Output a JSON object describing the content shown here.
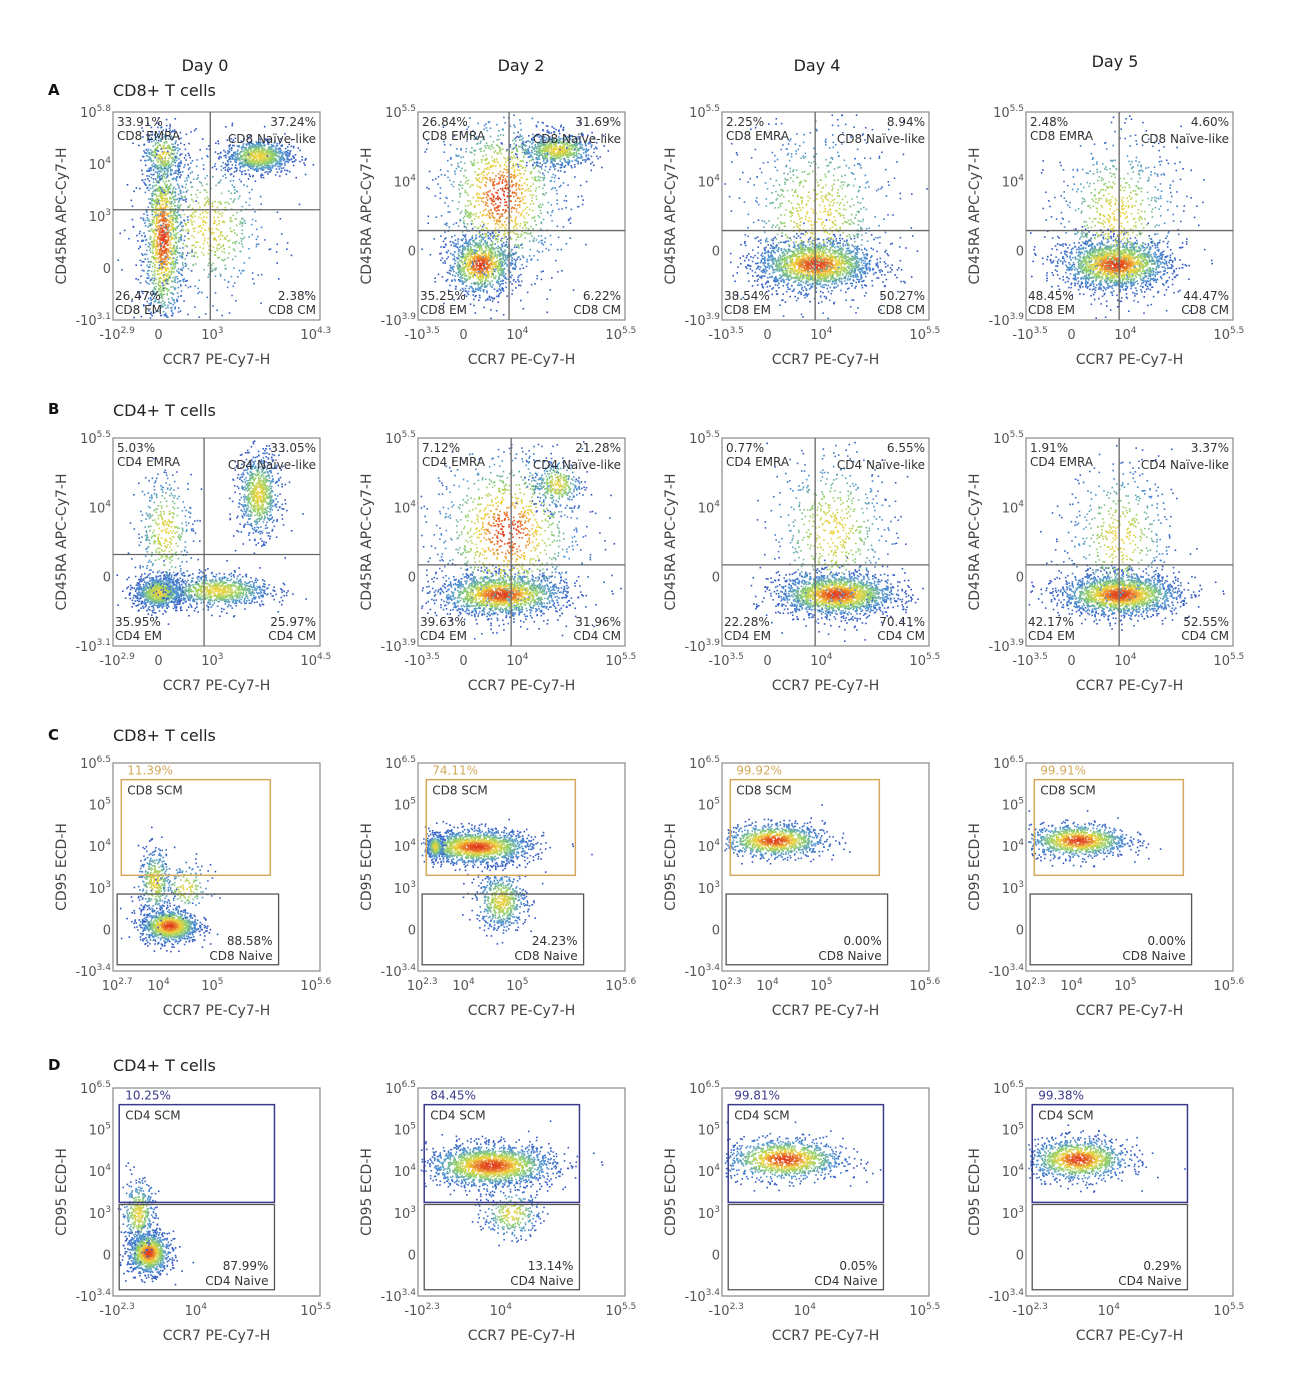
{
  "columns": [
    "Day 0",
    "Day 2",
    "Day 4",
    "Day 5"
  ],
  "rows": [
    {
      "letter": "A",
      "title": "CD8+ T cells"
    },
    {
      "letter": "B",
      "title": "CD4+ T cells"
    },
    {
      "letter": "C",
      "title": "CD8+ T cells"
    },
    {
      "letter": "D",
      "title": "CD4+ T cells"
    }
  ],
  "colors": {
    "gate_scm_cd8": "#d4a85a",
    "gate_scm_cd4": "#3a3a8a",
    "quad_line": "#666666",
    "density_low": "#3050c0",
    "density_mid": "#8fd06a",
    "density_high": "#e03a1c"
  },
  "chart_data": [
    {
      "panel": "A",
      "day": "Day 0",
      "type": "scatter",
      "subtype": "density-quadrant",
      "xlabel": "CCR7 PE-Cy7-H",
      "ylabel": "CD45RA APC-Cy7-H",
      "xticks": [
        "-10^2.9",
        "0",
        "10^3",
        "10^4.3"
      ],
      "yticks": [
        "10^5.8",
        "10^4",
        "10^3",
        "0",
        "-10^3.1"
      ],
      "quadrants": {
        "ul": {
          "pct": "33.91%",
          "name": "CD8 EMRA"
        },
        "ur": {
          "pct": "37.24%",
          "name": "CD8 Naïve-like"
        },
        "ll": {
          "pct": "26.47%",
          "name": "CD8 EM"
        },
        "lr": {
          "pct": "2.38%",
          "name": "CD8 CM"
        }
      },
      "populations": [
        {
          "x": 0.24,
          "y": 0.4,
          "sx": 0.05,
          "sy": 0.22,
          "n": 1400
        },
        {
          "x": 0.7,
          "y": 0.79,
          "sx": 0.08,
          "sy": 0.04,
          "n": 900
        },
        {
          "x": 0.24,
          "y": 0.8,
          "sx": 0.05,
          "sy": 0.06,
          "n": 300
        },
        {
          "x": 0.45,
          "y": 0.45,
          "sx": 0.15,
          "sy": 0.18,
          "n": 600
        }
      ]
    },
    {
      "panel": "A",
      "day": "Day 2",
      "type": "scatter",
      "subtype": "density-quadrant",
      "xlabel": "CCR7 PE-Cy7-H",
      "ylabel": "CD45RA APC-Cy7-H",
      "xticks": [
        "-10^3.5",
        "0",
        "10^4",
        "10^5.5"
      ],
      "yticks": [
        "10^5.5",
        "10^4",
        "0",
        "-10^3.9"
      ],
      "quadrants": {
        "ul": {
          "pct": "26.84%",
          "name": "CD8 EMRA"
        },
        "ur": {
          "pct": "31.69%",
          "name": "CD8 Naïve-like"
        },
        "ll": {
          "pct": "35.25%",
          "name": "CD8 EM"
        },
        "lr": {
          "pct": "6.22%",
          "name": "CD8 CM"
        }
      },
      "populations": [
        {
          "x": 0.3,
          "y": 0.27,
          "sx": 0.08,
          "sy": 0.07,
          "n": 1100
        },
        {
          "x": 0.67,
          "y": 0.82,
          "sx": 0.09,
          "sy": 0.04,
          "n": 700
        },
        {
          "x": 0.4,
          "y": 0.6,
          "sx": 0.15,
          "sy": 0.2,
          "n": 1200
        }
      ]
    },
    {
      "panel": "A",
      "day": "Day 4",
      "type": "scatter",
      "subtype": "density-quadrant",
      "xlabel": "CCR7 PE-Cy7-H",
      "ylabel": "CD45RA APC-Cy7-H",
      "xticks": [
        "-10^3.5",
        "0",
        "10^4",
        "10^5.5"
      ],
      "yticks": [
        "10^5.5",
        "10^4",
        "0",
        "-10^3.9"
      ],
      "quadrants": {
        "ul": {
          "pct": "2.25%",
          "name": "CD8 EMRA"
        },
        "ur": {
          "pct": "8.94%",
          "name": "CD8 Naïve-like"
        },
        "ll": {
          "pct": "38.54%",
          "name": "CD8 EM"
        },
        "lr": {
          "pct": "50.27%",
          "name": "CD8 CM"
        }
      },
      "populations": [
        {
          "x": 0.45,
          "y": 0.27,
          "sx": 0.14,
          "sy": 0.06,
          "n": 1900
        },
        {
          "x": 0.45,
          "y": 0.5,
          "sx": 0.18,
          "sy": 0.22,
          "n": 800
        }
      ]
    },
    {
      "panel": "A",
      "day": "Day 5",
      "type": "scatter",
      "subtype": "density-quadrant",
      "xlabel": "CCR7 PE-Cy7-H",
      "ylabel": "CD45RA APC-Cy7-H",
      "xticks": [
        "-10^3.5",
        "0",
        "10^4",
        "10^5.5"
      ],
      "yticks": [
        "10^5.5",
        "10^4",
        "0",
        "-10^3.9"
      ],
      "quadrants": {
        "ul": {
          "pct": "2.48%",
          "name": "CD8 EMRA"
        },
        "ur": {
          "pct": "4.60%",
          "name": "CD8 Naïve-like"
        },
        "ll": {
          "pct": "48.45%",
          "name": "CD8 EM"
        },
        "lr": {
          "pct": "44.47%",
          "name": "CD8 CM"
        }
      },
      "populations": [
        {
          "x": 0.43,
          "y": 0.27,
          "sx": 0.13,
          "sy": 0.06,
          "n": 1900
        },
        {
          "x": 0.44,
          "y": 0.5,
          "sx": 0.15,
          "sy": 0.2,
          "n": 700
        }
      ]
    },
    {
      "panel": "B",
      "day": "Day 0",
      "type": "scatter",
      "subtype": "density-quadrant",
      "xlabel": "CCR7 PE-Cy7-H",
      "ylabel": "CD45RA APC-Cy7-H",
      "xticks": [
        "-10^2.9",
        "0",
        "10^3",
        "10^4.5"
      ],
      "yticks": [
        "10^5.5",
        "10^4",
        "0",
        "-10^3.1"
      ],
      "quadrants": {
        "ul": {
          "pct": "5.03%",
          "name": "CD4 EMRA"
        },
        "ur": {
          "pct": "33.05%",
          "name": "CD4 Naïve-like"
        },
        "ll": {
          "pct": "35.95%",
          "name": "CD4 EM"
        },
        "lr": {
          "pct": "25.97%",
          "name": "CD4 CM"
        }
      },
      "populations": [
        {
          "x": 0.22,
          "y": 0.26,
          "sx": 0.06,
          "sy": 0.04,
          "n": 900
        },
        {
          "x": 0.5,
          "y": 0.27,
          "sx": 0.13,
          "sy": 0.04,
          "n": 900
        },
        {
          "x": 0.7,
          "y": 0.73,
          "sx": 0.05,
          "sy": 0.1,
          "n": 800
        },
        {
          "x": 0.25,
          "y": 0.55,
          "sx": 0.07,
          "sy": 0.15,
          "n": 400
        }
      ]
    },
    {
      "panel": "B",
      "day": "Day 2",
      "type": "scatter",
      "subtype": "density-quadrant",
      "xlabel": "CCR7 PE-Cy7-H",
      "ylabel": "CD45RA APC-Cy7-H",
      "xticks": [
        "-10^3.5",
        "0",
        "10^4",
        "10^5.5"
      ],
      "yticks": [
        "10^5.5",
        "10^4",
        "0",
        "-10^3.9"
      ],
      "quadrants": {
        "ul": {
          "pct": "7.12%",
          "name": "CD4 EMRA"
        },
        "ur": {
          "pct": "21.28%",
          "name": "CD4 Naïve-like"
        },
        "ll": {
          "pct": "39.63%",
          "name": "CD4 EM"
        },
        "lr": {
          "pct": "31.96%",
          "name": "CD4 CM"
        }
      },
      "populations": [
        {
          "x": 0.4,
          "y": 0.25,
          "sx": 0.15,
          "sy": 0.05,
          "n": 1700
        },
        {
          "x": 0.43,
          "y": 0.55,
          "sx": 0.18,
          "sy": 0.2,
          "n": 1100
        },
        {
          "x": 0.67,
          "y": 0.78,
          "sx": 0.06,
          "sy": 0.06,
          "n": 300
        }
      ]
    },
    {
      "panel": "B",
      "day": "Day 4",
      "type": "scatter",
      "subtype": "density-quadrant",
      "xlabel": "CCR7 PE-Cy7-H",
      "ylabel": "CD45RA APC-Cy7-H",
      "xticks": [
        "-10^3.5",
        "0",
        "10^4",
        "10^5.5"
      ],
      "yticks": [
        "10^5.5",
        "10^4",
        "0",
        "-10^3.9"
      ],
      "quadrants": {
        "ul": {
          "pct": "0.77%",
          "name": "CD4 EMRA"
        },
        "ur": {
          "pct": "6.55%",
          "name": "CD4 Naïve-like"
        },
        "ll": {
          "pct": "22.28%",
          "name": "CD4 EM"
        },
        "lr": {
          "pct": "70.41%",
          "name": "CD4 CM"
        }
      },
      "populations": [
        {
          "x": 0.55,
          "y": 0.25,
          "sx": 0.14,
          "sy": 0.05,
          "n": 1900
        },
        {
          "x": 0.53,
          "y": 0.55,
          "sx": 0.15,
          "sy": 0.2,
          "n": 600
        }
      ]
    },
    {
      "panel": "B",
      "day": "Day 5",
      "type": "scatter",
      "subtype": "density-quadrant",
      "xlabel": "CCR7 PE-Cy7-H",
      "ylabel": "CD45RA APC-Cy7-H",
      "xticks": [
        "-10^3.5",
        "0",
        "10^4",
        "10^5.5"
      ],
      "yticks": [
        "10^5.5",
        "10^4",
        "0",
        "-10^3.9"
      ],
      "quadrants": {
        "ul": {
          "pct": "1.91%",
          "name": "CD4 EMRA"
        },
        "ur": {
          "pct": "3.37%",
          "name": "CD4 Naïve-like"
        },
        "ll": {
          "pct": "42.17%",
          "name": "CD4 EM"
        },
        "lr": {
          "pct": "52.55%",
          "name": "CD4 CM"
        }
      },
      "populations": [
        {
          "x": 0.45,
          "y": 0.25,
          "sx": 0.14,
          "sy": 0.05,
          "n": 1900
        },
        {
          "x": 0.45,
          "y": 0.52,
          "sx": 0.13,
          "sy": 0.18,
          "n": 500
        }
      ]
    },
    {
      "panel": "C",
      "day": "Day 0",
      "type": "scatter",
      "subtype": "density-gate",
      "xlabel": "CCR7 PE-Cy7-H",
      "ylabel": "CD95 ECD-H",
      "xticks": [
        "10^2.7",
        "10^4",
        "10^5",
        "10^5.6"
      ],
      "yticks": [
        "10^6.5",
        "10^5",
        "10^4",
        "10^3",
        "0",
        "-10^3.4"
      ],
      "gates": {
        "upper": {
          "pct": "11.39%",
          "name": "CD8 SCM"
        },
        "lower": {
          "pct": "88.58%",
          "name": "CD8 Naive"
        }
      },
      "populations": [
        {
          "x": 0.27,
          "y": 0.22,
          "sx": 0.07,
          "sy": 0.04,
          "n": 1100
        },
        {
          "x": 0.2,
          "y": 0.43,
          "sx": 0.04,
          "sy": 0.08,
          "n": 400
        },
        {
          "x": 0.35,
          "y": 0.4,
          "sx": 0.06,
          "sy": 0.06,
          "n": 150
        }
      ]
    },
    {
      "panel": "C",
      "day": "Day 2",
      "type": "scatter",
      "subtype": "density-gate",
      "xlabel": "CCR7 PE-Cy7-H",
      "ylabel": "CD95 ECD-H",
      "xticks": [
        "10^2.3",
        "10^4",
        "10^5",
        "10^5.6"
      ],
      "yticks": [
        "10^6.5",
        "10^5",
        "10^4",
        "10^3",
        "0",
        "-10^3.4"
      ],
      "gates": {
        "upper": {
          "pct": "74.11%",
          "name": "CD8 SCM"
        },
        "lower": {
          "pct": "24.23%",
          "name": "CD8 Naive"
        }
      },
      "populations": [
        {
          "x": 0.28,
          "y": 0.6,
          "sx": 0.13,
          "sy": 0.04,
          "n": 1700
        },
        {
          "x": 0.4,
          "y": 0.34,
          "sx": 0.06,
          "sy": 0.07,
          "n": 600
        },
        {
          "x": 0.08,
          "y": 0.6,
          "sx": 0.02,
          "sy": 0.03,
          "n": 250
        }
      ]
    },
    {
      "panel": "C",
      "day": "Day 4",
      "type": "scatter",
      "subtype": "density-gate",
      "xlabel": "CCR7 PE-Cy7-H",
      "ylabel": "CD95 ECD-H",
      "xticks": [
        "10^2.3",
        "10^4",
        "10^5",
        "10^5.6"
      ],
      "yticks": [
        "10^6.5",
        "10^5",
        "10^4",
        "10^3",
        "0",
        "-10^3.4"
      ],
      "gates": {
        "upper": {
          "pct": "99.92%",
          "name": "CD8 SCM"
        },
        "lower": {
          "pct": "0.00%",
          "name": "CD8 Naive"
        }
      },
      "populations": [
        {
          "x": 0.25,
          "y": 0.63,
          "sx": 0.12,
          "sy": 0.04,
          "n": 1100
        }
      ]
    },
    {
      "panel": "C",
      "day": "Day 5",
      "type": "scatter",
      "subtype": "density-gate",
      "xlabel": "CCR7 PE-Cy7-H",
      "ylabel": "CD95 ECD-H",
      "xticks": [
        "10^2.3",
        "10^4",
        "10^5",
        "10^5.6"
      ],
      "yticks": [
        "10^6.5",
        "10^5",
        "10^4",
        "10^3",
        "0",
        "-10^3.4"
      ],
      "gates": {
        "upper": {
          "pct": "99.91%",
          "name": "CD8 SCM"
        },
        "lower": {
          "pct": "0.00%",
          "name": "CD8 Naive"
        }
      },
      "populations": [
        {
          "x": 0.25,
          "y": 0.63,
          "sx": 0.12,
          "sy": 0.04,
          "n": 1100
        }
      ]
    },
    {
      "panel": "D",
      "day": "Day 0",
      "type": "scatter",
      "subtype": "density-gate",
      "xlabel": "CCR7 PE-Cy7-H",
      "ylabel": "CD95 ECD-H",
      "xticks": [
        "-10^2.3",
        "10^4",
        "10^5.5"
      ],
      "yticks": [
        "10^6.5",
        "10^5",
        "10^4",
        "10^3",
        "0",
        "-10^3.4"
      ],
      "gates": {
        "upper": {
          "pct": "10.25%",
          "name": "CD4 SCM"
        },
        "lower": {
          "pct": "87.99%",
          "name": "CD4 Naive"
        }
      },
      "populations": [
        {
          "x": 0.17,
          "y": 0.21,
          "sx": 0.05,
          "sy": 0.05,
          "n": 1100
        },
        {
          "x": 0.12,
          "y": 0.4,
          "sx": 0.04,
          "sy": 0.08,
          "n": 400
        }
      ]
    },
    {
      "panel": "D",
      "day": "Day 2",
      "type": "scatter",
      "subtype": "density-gate",
      "xlabel": "CCR7 PE-Cy7-H",
      "ylabel": "CD95 ECD-H",
      "xticks": [
        "-10^2.3",
        "10^4",
        "10^5.5"
      ],
      "yticks": [
        "10^6.5",
        "10^5",
        "10^4",
        "10^3",
        "0",
        "-10^3.4"
      ],
      "gates": {
        "upper": {
          "pct": "84.45%",
          "name": "CD4 SCM"
        },
        "lower": {
          "pct": "13.14%",
          "name": "CD4 Naive"
        }
      },
      "populations": [
        {
          "x": 0.35,
          "y": 0.63,
          "sx": 0.15,
          "sy": 0.05,
          "n": 1900
        },
        {
          "x": 0.45,
          "y": 0.4,
          "sx": 0.07,
          "sy": 0.06,
          "n": 300
        }
      ]
    },
    {
      "panel": "D",
      "day": "Day 4",
      "type": "scatter",
      "subtype": "density-gate",
      "xlabel": "CCR7 PE-Cy7-H",
      "ylabel": "CD95 ECD-H",
      "xticks": [
        "-10^2.3",
        "10^4",
        "10^5.5"
      ],
      "yticks": [
        "10^6.5",
        "10^5",
        "10^4",
        "10^3",
        "0",
        "-10^3.4"
      ],
      "gates": {
        "upper": {
          "pct": "99.81%",
          "name": "CD4 SCM"
        },
        "lower": {
          "pct": "0.05%",
          "name": "CD4 Naive"
        }
      },
      "populations": [
        {
          "x": 0.3,
          "y": 0.66,
          "sx": 0.14,
          "sy": 0.05,
          "n": 1200
        }
      ]
    },
    {
      "panel": "D",
      "day": "Day 5",
      "type": "scatter",
      "subtype": "density-gate",
      "xlabel": "CCR7 PE-Cy7-H",
      "ylabel": "CD95 ECD-H",
      "xticks": [
        "-10^2.3",
        "10^4",
        "10^5.5"
      ],
      "yticks": [
        "10^6.5",
        "10^5",
        "10^4",
        "10^3",
        "0",
        "-10^3.4"
      ],
      "gates": {
        "upper": {
          "pct": "99.38%",
          "name": "CD4 SCM"
        },
        "lower": {
          "pct": "0.29%",
          "name": "CD4 Naive"
        }
      },
      "populations": [
        {
          "x": 0.25,
          "y": 0.66,
          "sx": 0.12,
          "sy": 0.05,
          "n": 1200
        }
      ]
    }
  ]
}
